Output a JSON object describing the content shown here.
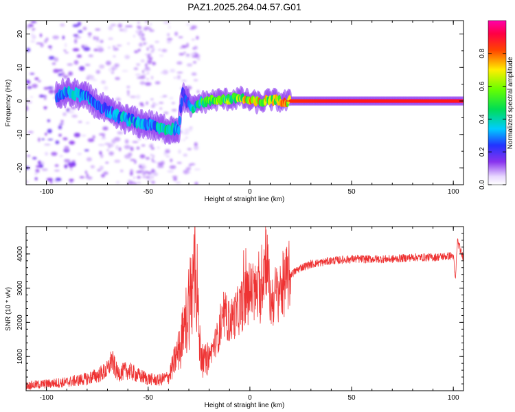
{
  "figure_title": "PAZ1.2025.264.04.57.G01",
  "chart_data": [
    {
      "type": "heatmap",
      "title": "PAZ1.2025.264.04.57.G01",
      "xlabel": "Height of straight line (km)",
      "ylabel": "Frequency (Hz)",
      "xlim": [
        -110,
        105
      ],
      "ylim": [
        -25,
        24
      ],
      "xticks": [
        -100,
        -50,
        0,
        50,
        100
      ],
      "yticks": [
        -20,
        -10,
        0,
        10,
        20
      ],
      "colorbar": {
        "label": "Normalized spectral amplitude",
        "range": [
          0,
          1
        ],
        "ticks": [
          0.0,
          0.2,
          0.4,
          0.6,
          0.8
        ],
        "colormap": "rainbow (violet → blue → cyan → green → yellow → red → magenta)"
      },
      "ridge_trace": {
        "description": "dominant frequency ridge (Hz) vs height (km)",
        "x": [
          -95,
          -90,
          -85,
          -80,
          -75,
          -70,
          -65,
          -60,
          -55,
          -50,
          -45,
          -40,
          -35,
          -33,
          -30,
          -28,
          -25,
          -20,
          -15,
          -10,
          -5,
          0,
          5,
          10,
          15,
          20,
          40,
          60,
          80,
          100,
          105
        ],
        "y": [
          1.5,
          2.5,
          2,
          1,
          -1,
          -3,
          -4.5,
          -5.5,
          -6.5,
          -7,
          -8,
          -8.5,
          -8,
          2,
          -1,
          -2,
          -0.5,
          0,
          0.5,
          0.5,
          1,
          0,
          -0.5,
          0.5,
          0,
          0,
          0,
          0,
          0,
          0,
          0
        ],
        "amplitude": [
          0.3,
          0.35,
          0.4,
          0.35,
          0.3,
          0.3,
          0.35,
          0.4,
          0.35,
          0.3,
          0.4,
          0.45,
          0.4,
          0.3,
          0.3,
          0.45,
          0.5,
          0.55,
          0.6,
          0.65,
          0.7,
          0.75,
          0.75,
          0.7,
          0.75,
          0.85,
          0.9,
          0.9,
          0.9,
          0.9,
          0.9
        ]
      }
    },
    {
      "type": "line",
      "xlabel": "Height of straight line (km)",
      "ylabel": "SNR (10 * v/v)",
      "xlim": [
        -110,
        105
      ],
      "ylim": [
        0,
        4800
      ],
      "xticks": [
        -100,
        -50,
        0,
        50,
        100
      ],
      "yticks": [
        1000,
        2000,
        3000,
        4000
      ],
      "series": [
        {
          "name": "SNR",
          "color": "#ee3333",
          "x": [
            -110,
            -100,
            -90,
            -80,
            -75,
            -70,
            -68,
            -65,
            -60,
            -55,
            -50,
            -45,
            -40,
            -38,
            -35,
            -32,
            -30,
            -28,
            -27,
            -26,
            -25,
            -23,
            -20,
            -15,
            -12,
            -10,
            -5,
            0,
            5,
            8,
            10,
            15,
            20,
            25,
            30,
            35,
            40,
            50,
            60,
            70,
            80,
            90,
            100,
            101,
            102,
            104,
            105
          ],
          "values": [
            150,
            200,
            250,
            350,
            450,
            600,
            900,
            500,
            600,
            450,
            350,
            300,
            400,
            700,
            1200,
            1800,
            2600,
            3000,
            4700,
            3200,
            1500,
            800,
            1000,
            1700,
            2200,
            2000,
            2400,
            2900,
            2800,
            4100,
            2600,
            3000,
            3400,
            3600,
            3700,
            3750,
            3800,
            3850,
            3850,
            3850,
            3900,
            3900,
            3950,
            3200,
            4400,
            4000,
            3900
          ]
        }
      ]
    }
  ]
}
